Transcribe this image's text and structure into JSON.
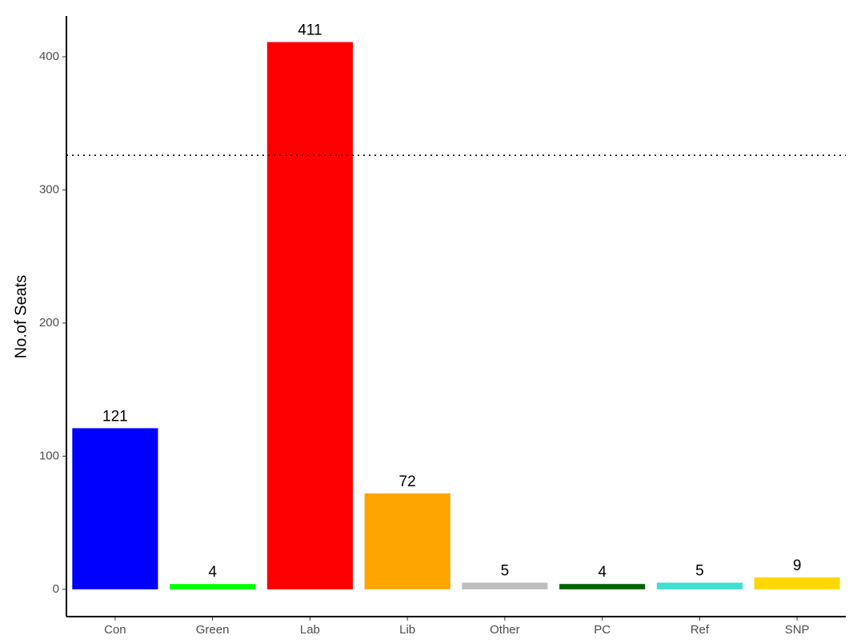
{
  "chart_data": {
    "type": "bar",
    "y_label": "No.of Seats",
    "categories": [
      "Con",
      "Green",
      "Lab",
      "Lib",
      "Other",
      "PC",
      "Ref",
      "SNP"
    ],
    "values": [
      121,
      4,
      411,
      72,
      5,
      4,
      5,
      9
    ],
    "colors": [
      "#0000ff",
      "#00ff00",
      "#ff0000",
      "#ffa500",
      "#bebebe",
      "#006400",
      "#40e0d0",
      "#ffd700"
    ],
    "ylim": [
      -20.5,
      430.6
    ],
    "yticks": [
      0,
      100,
      200,
      300,
      400
    ],
    "reference_line": 326,
    "grid": false
  }
}
